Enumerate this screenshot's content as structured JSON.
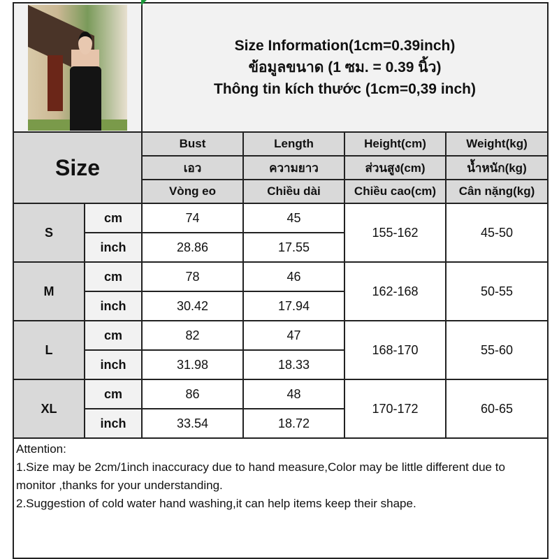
{
  "title": {
    "line1": "Size Information(1cm=0.39inch)",
    "line2": "ข้อมูลขนาด (1 ซม. = 0.39 นิ้ว)",
    "line3": "Thông tin kích thước (1cm=0,39 inch)"
  },
  "photo": {
    "description_icon": "model-photo"
  },
  "size_label": "Size",
  "headers": [
    [
      "Bust",
      "Length",
      "Height(cm)",
      "Weight(kg)"
    ],
    [
      "เอว",
      "ความยาว",
      "ส่วนสูง(cm)",
      "น้ำหนัก(kg)"
    ],
    [
      "Vòng eo",
      "Chiều dài",
      "Chiều cao(cm)",
      "Cân nặng(kg)"
    ]
  ],
  "sizes": [
    {
      "name": "S",
      "cm": {
        "unit": "cm",
        "bust": "74",
        "length": "45"
      },
      "inch": {
        "unit": "inch",
        "bust": "28.86",
        "length": "17.55"
      },
      "height": "155-162",
      "weight": "45-50"
    },
    {
      "name": "M",
      "cm": {
        "unit": "cm",
        "bust": "78",
        "length": "46"
      },
      "inch": {
        "unit": "inch",
        "bust": "30.42",
        "length": "17.94"
      },
      "height": "162-168",
      "weight": "50-55"
    },
    {
      "name": "L",
      "cm": {
        "unit": "cm",
        "bust": "82",
        "length": "47"
      },
      "inch": {
        "unit": "inch",
        "bust": "31.98",
        "length": "18.33"
      },
      "height": "168-170",
      "weight": "55-60"
    },
    {
      "name": "XL",
      "cm": {
        "unit": "cm",
        "bust": "86",
        "length": "48"
      },
      "inch": {
        "unit": "inch",
        "bust": "33.54",
        "length": "18.72"
      },
      "height": "170-172",
      "weight": "60-65"
    }
  ],
  "attention": {
    "heading": "Attention:",
    "note1": "1.Size may be 2cm/1inch inaccuracy due to hand measure,Color may be little different due to monitor ,thanks for your understanding.",
    "note2": "2.Suggestion of cold water hand washing,it can help items keep their shape."
  }
}
